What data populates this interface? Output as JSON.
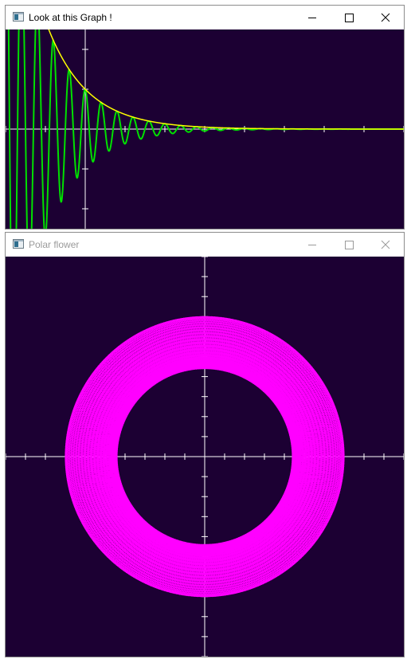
{
  "windows": [
    {
      "title": "Look at this Graph !",
      "active": true,
      "controls": {
        "minimize_icon": "minimize-icon",
        "maximize_icon": "maximize-icon",
        "close_icon": "close-icon"
      }
    },
    {
      "title": "Polar flower",
      "active": false,
      "controls": {
        "minimize_icon": "minimize-icon",
        "maximize_icon": "maximize-icon",
        "close_icon": "close-icon"
      }
    }
  ],
  "colors": {
    "plot_background": "#1c0033",
    "axis": "#ffffff",
    "damped_wave": "#00e000",
    "envelope": "#ffff00",
    "polar_curve": "#ff00ff"
  },
  "chart_data": [
    {
      "type": "line",
      "title": "",
      "xlabel": "",
      "ylabel": "",
      "grid": false,
      "x_tick_spacing": 1,
      "y_tick_spacing": 1,
      "x_range": [
        -2,
        8
      ],
      "y_range": [
        -2.5,
        2.5
      ],
      "series": [
        {
          "function": "e^(-x) * cos(2*pi*x*2.5)",
          "color": "#00e000"
        },
        {
          "function": "e^(-x)",
          "color": "#ffff00"
        }
      ]
    },
    {
      "type": "line",
      "title": "",
      "xlabel": "",
      "ylabel": "",
      "grid": false,
      "x_tick_spacing": 1,
      "y_tick_spacing": 1,
      "x_range": [
        -10,
        10
      ],
      "y_range": [
        -10,
        10
      ],
      "series": [
        {
          "function": "r = 5.7 + 1.3*sin(20.48*theta)",
          "polar": true,
          "color": "#ff00ff"
        }
      ]
    }
  ]
}
